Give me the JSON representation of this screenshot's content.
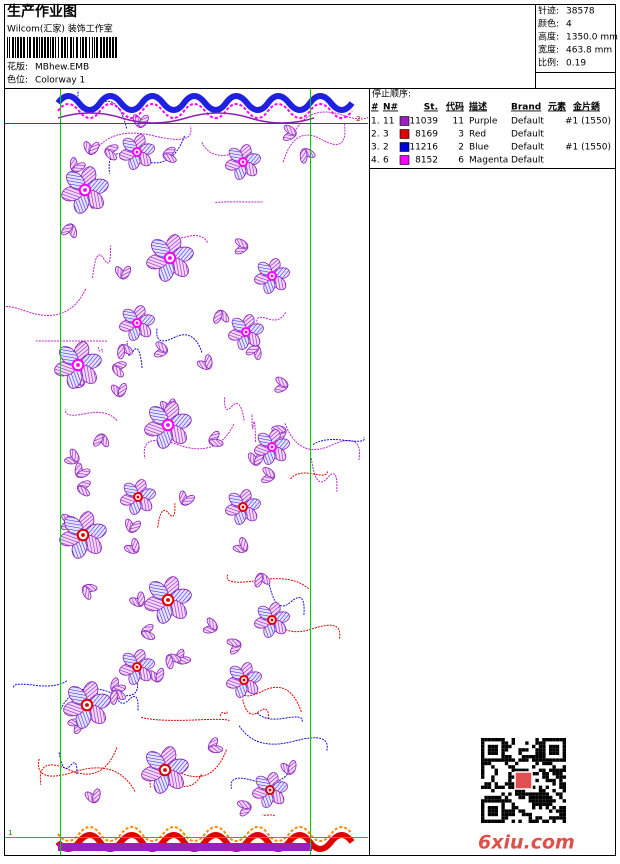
{
  "header": {
    "title": "生产作业图",
    "subtitle": "Wilcom(汇家) 装饰工作室",
    "design_label": "花版:",
    "design": "MBhew.EMB",
    "colorway_label": "色位:",
    "colorway": "Colorway 1"
  },
  "stats": [
    {
      "label": "针迹:",
      "value": "38578"
    },
    {
      "label": "颜色:",
      "value": "4"
    },
    {
      "label": "高度:",
      "value": "1350.0 mm"
    },
    {
      "label": "宽度:",
      "value": "463.8 mm"
    },
    {
      "label": "比例:",
      "value": "0.19"
    }
  ],
  "stop_sequence": {
    "title": "停止顺序:",
    "columns": [
      "#",
      "N#",
      "St.",
      "代码",
      "描述",
      "Brand",
      "元素",
      "金片銹"
    ],
    "rows": [
      {
        "index": "1.",
        "needle": "11",
        "color": "#9b1fc0",
        "stitches": "11039",
        "code": "11",
        "description": "Purple",
        "brand": "Default",
        "sequin": "#1 (1550)"
      },
      {
        "index": "2.",
        "needle": "3",
        "color": "#e00000",
        "stitches": "8169",
        "code": "3",
        "description": "Red",
        "brand": "Default"
      },
      {
        "index": "3.",
        "needle": "2",
        "color": "#0000e0",
        "stitches": "11216",
        "code": "2",
        "description": "Blue",
        "brand": "Default",
        "sequin": "#1 (1550)"
      },
      {
        "index": "4.",
        "needle": "6",
        "color": "#ff00ff",
        "stitches": "8152",
        "code": "6",
        "description": "Magenta",
        "brand": "Default"
      }
    ]
  },
  "markers": {
    "top": "2",
    "bottom": "1"
  },
  "watermark": "6xiu.com"
}
